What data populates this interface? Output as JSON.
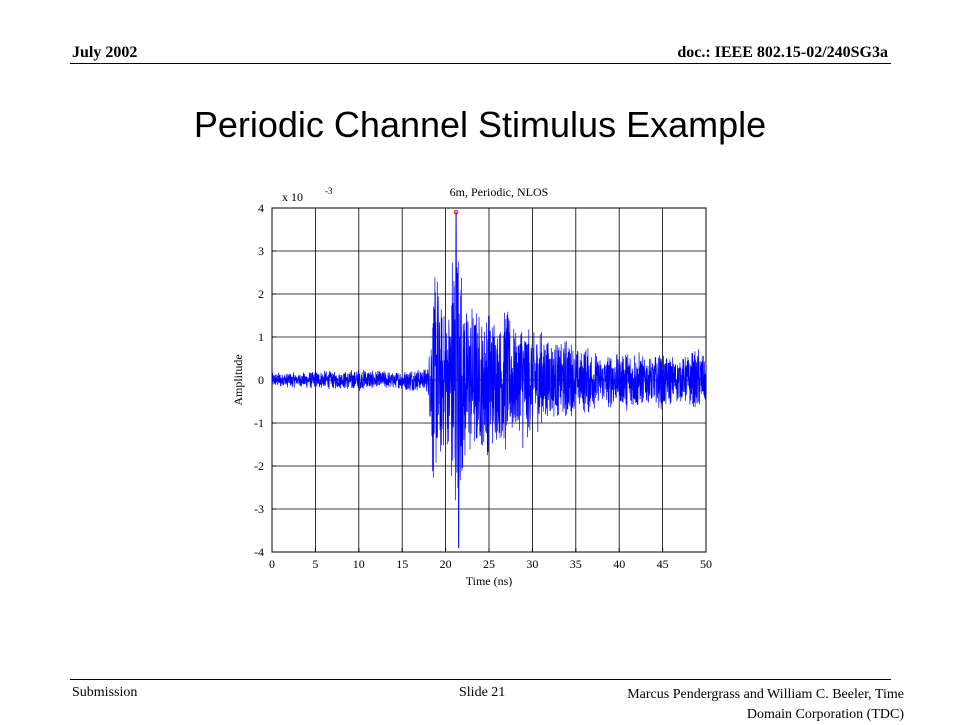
{
  "header": {
    "date": "July 2002",
    "doc": "doc.: IEEE 802.15-02/240SG3a"
  },
  "slide_title": "Periodic Channel Stimulus Example",
  "footer": {
    "left": "Submission",
    "middle": "Slide 21",
    "right_line1": "Marcus Pendergrass and William  C. Beeler, Time",
    "right_line2": "Domain Corporation (TDC)"
  },
  "chart_data": {
    "type": "line",
    "title": "6m, Periodic, NLOS",
    "xlabel": "Time (ns)",
    "ylabel": "Amplitude",
    "y_multiplier_label": "x 10",
    "y_multiplier_exponent": "-3",
    "xlim": [
      0,
      50
    ],
    "ylim": [
      -4,
      4
    ],
    "xticks": [
      "0",
      "5",
      "10",
      "15",
      "20",
      "25",
      "30",
      "35",
      "40",
      "45",
      "50"
    ],
    "yticks": [
      "4",
      "3",
      "2",
      "1",
      "0",
      "-1",
      "-2",
      "-3",
      "-4"
    ],
    "grid": true,
    "line_color": "#0000ff",
    "peak_marker_color": "#ff0000",
    "series": [
      {
        "x": [
          0,
          2,
          4,
          6,
          8,
          10,
          12,
          14,
          15,
          16,
          17,
          18,
          18.5,
          19,
          19.5,
          20,
          20.5,
          21,
          21.2,
          21.5,
          22,
          22.5,
          23,
          24,
          25,
          26,
          27,
          28,
          29,
          30,
          31,
          32,
          33,
          34,
          35,
          36,
          37,
          38,
          39,
          40,
          41,
          42,
          43,
          44,
          45,
          46,
          47,
          48,
          49,
          50
        ],
        "envelope": [
          0.18,
          0.18,
          0.2,
          0.22,
          0.2,
          0.28,
          0.22,
          0.2,
          0.22,
          0.28,
          0.25,
          0.3,
          2.5,
          2.7,
          1.8,
          1.5,
          2.2,
          3.8,
          4.0,
          3.5,
          2.4,
          1.8,
          1.8,
          1.6,
          1.8,
          1.4,
          1.8,
          1.2,
          1.7,
          1.1,
          1.3,
          1.0,
          0.9,
          1.1,
          0.7,
          0.8,
          0.8,
          0.5,
          0.7,
          0.6,
          0.8,
          0.7,
          0.6,
          0.6,
          0.7,
          0.6,
          0.5,
          0.6,
          0.8,
          0.5
        ],
        "peak": {
          "x": 21.2,
          "y": 3.9
        },
        "trough": {
          "x": 21.5,
          "y": -3.9
        }
      }
    ]
  }
}
